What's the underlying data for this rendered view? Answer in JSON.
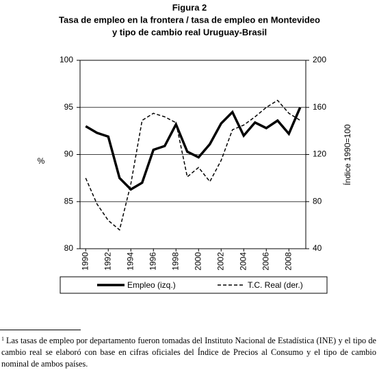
{
  "chart_data": {
    "type": "line",
    "title_lines": [
      "Figura 2",
      "Tasa de empleo en la frontera / tasa de empleo en Montevideo",
      "y tipo de cambio real Uruguay-Brasil"
    ],
    "ylabel": "%",
    "y2label": "Índice 1990=100",
    "x": [
      1990,
      1991,
      1992,
      1993,
      1994,
      1995,
      1996,
      1997,
      1998,
      1999,
      2000,
      2001,
      2002,
      2003,
      2004,
      2005,
      2006,
      2007,
      2008,
      2009
    ],
    "xlim": [
      1989.5,
      2009.5
    ],
    "xticks": [
      1990,
      1992,
      1994,
      1996,
      1998,
      2000,
      2002,
      2004,
      2006,
      2008
    ],
    "ylim": [
      80,
      100
    ],
    "yticks": [
      80,
      85,
      90,
      95,
      100
    ],
    "y2lim": [
      40,
      200
    ],
    "y2ticks": [
      40,
      80,
      120,
      160,
      200
    ],
    "grid": true,
    "series": [
      {
        "name": "Empleo (izq.)",
        "color": "#000000",
        "style": "solid",
        "values": [
          93.0,
          92.3,
          91.9,
          87.5,
          86.3,
          87.0,
          90.5,
          90.9,
          93.2,
          90.3,
          89.7,
          91.1,
          93.3,
          94.5,
          92.0,
          93.4,
          92.8,
          93.6,
          92.2,
          95.0
        ]
      },
      {
        "name": "T.C. Real (der.)",
        "color": "#000000",
        "style": "dashed",
        "axis": "y2",
        "values": [
          100,
          78,
          64,
          56,
          95,
          149,
          155,
          152,
          147,
          101,
          109,
          97,
          115,
          141,
          145,
          152,
          160,
          166,
          155,
          149
        ]
      }
    ]
  },
  "footnote": {
    "marker": "1",
    "text": "Las tasas de empleo por departamento fueron tomadas del Instituto Nacional de Estadística (INE) y el tipo de cambio real se elaboró con base en cifras oficiales del Índice de Precios al Consumo y el tipo de cambio nominal de ambos países."
  }
}
